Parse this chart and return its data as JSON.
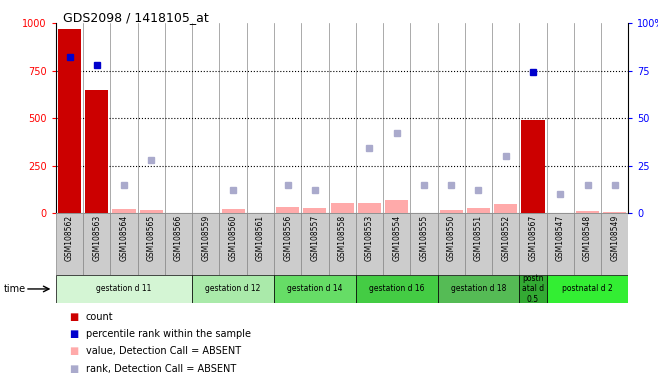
{
  "title": "GDS2098 / 1418105_at",
  "samples": [
    "GSM108562",
    "GSM108563",
    "GSM108564",
    "GSM108565",
    "GSM108566",
    "GSM108559",
    "GSM108560",
    "GSM108561",
    "GSM108556",
    "GSM108557",
    "GSM108558",
    "GSM108553",
    "GSM108554",
    "GSM108555",
    "GSM108550",
    "GSM108551",
    "GSM108552",
    "GSM108567",
    "GSM108547",
    "GSM108548",
    "GSM108549"
  ],
  "count_values": [
    970,
    650,
    0,
    0,
    0,
    0,
    0,
    0,
    0,
    0,
    0,
    0,
    0,
    0,
    0,
    0,
    0,
    490,
    0,
    0,
    0
  ],
  "count_absent_values": [
    0,
    0,
    20,
    15,
    0,
    0,
    20,
    0,
    30,
    25,
    55,
    55,
    70,
    0,
    15,
    25,
    50,
    0,
    0,
    12,
    8
  ],
  "count_absent": [
    false,
    false,
    true,
    true,
    true,
    true,
    true,
    true,
    true,
    true,
    true,
    true,
    true,
    true,
    true,
    true,
    true,
    false,
    true,
    true,
    true
  ],
  "rank_values": [
    82,
    78,
    15,
    28,
    0,
    0,
    12,
    0,
    15,
    12,
    0,
    34,
    42,
    15,
    15,
    12,
    30,
    74,
    10,
    15,
    15
  ],
  "rank_absent": [
    false,
    false,
    true,
    true,
    true,
    true,
    true,
    true,
    true,
    true,
    true,
    true,
    true,
    true,
    true,
    true,
    true,
    false,
    true,
    true,
    true
  ],
  "groups": [
    {
      "label": "gestation d 11",
      "start": 0,
      "end": 5,
      "color": "#d4f5d4"
    },
    {
      "label": "gestation d 12",
      "start": 5,
      "end": 8,
      "color": "#aaeaaa"
    },
    {
      "label": "gestation d 14",
      "start": 8,
      "end": 11,
      "color": "#66dd66"
    },
    {
      "label": "gestation d 16",
      "start": 11,
      "end": 14,
      "color": "#44cc44"
    },
    {
      "label": "gestation d 18",
      "start": 14,
      "end": 17,
      "color": "#55bb55"
    },
    {
      "label": "postn\natal d\n0.5",
      "start": 17,
      "end": 18,
      "color": "#33aa33"
    },
    {
      "label": "postnatal d 2",
      "start": 18,
      "end": 21,
      "color": "#33ee33"
    }
  ],
  "ylim_left": [
    0,
    1000
  ],
  "ylim_right": [
    0,
    100
  ],
  "yticks_left": [
    0,
    250,
    500,
    750,
    1000
  ],
  "yticks_right": [
    0,
    25,
    50,
    75,
    100
  ],
  "hlines": [
    250,
    500,
    750
  ],
  "bar_color_present": "#cc0000",
  "bar_color_absent": "#ffaaaa",
  "rank_color_present": "#0000cc",
  "rank_color_absent": "#aaaacc",
  "sample_box_color": "#cccccc",
  "sample_box_edge": "#888888",
  "bg_color": "#ffffff",
  "bar_width": 0.85
}
